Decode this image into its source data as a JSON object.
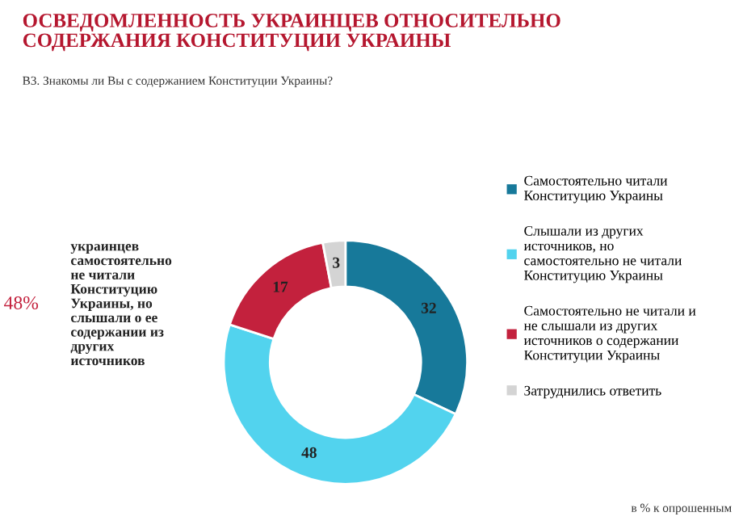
{
  "chart_data": {
    "type": "donut",
    "title": "ОСВЕДОМЛЕННОСТЬ УКРАИНЦЕВ ОТНОСИТЕЛЬНО\nСОДЕРЖАНИЯ КОНСТИТУЦИИ УКРАИНЫ",
    "subtitle": "В3. Знакомы ли Вы с содержанием Конституции Украины?",
    "categories": [
      "Самостоятельно читали\nКонституцию Украины",
      "Слышали из других\nисточников, но\nсамостоятельно не читали\nКонституцию Украины",
      "Самостоятельно не читали и\nне слышали из других\nисточников о содержании\nКонституции Украины",
      "Затруднились ответить"
    ],
    "values": [
      32,
      48,
      17,
      3
    ],
    "colors": [
      "#17799a",
      "#52d3ee",
      "#c3213d",
      "#d4d4d4"
    ],
    "data_labels": true,
    "legend": "right",
    "annotations": [
      "48%",
      "украинцев\nсамостоятельно\nне читали\nКонституцию\nУкраины, но\nслышали о ее\nсодержании из\nдругих\nисточников",
      "в % к опрошенным"
    ]
  }
}
